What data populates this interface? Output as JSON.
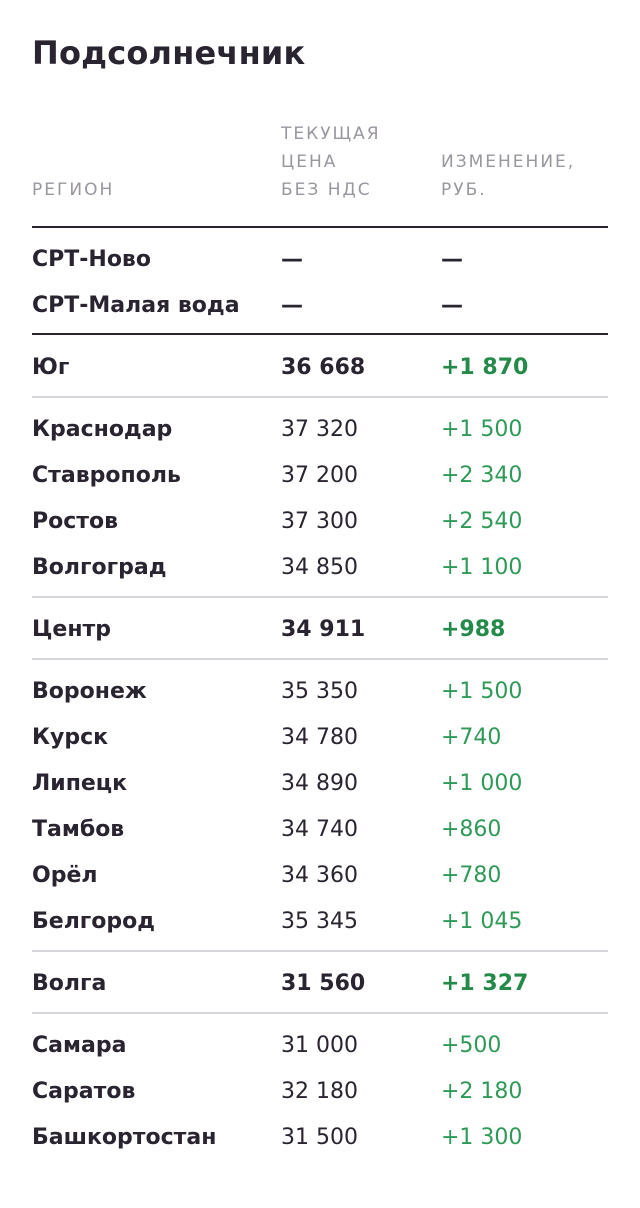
{
  "title": "Подсолнечник",
  "headers": {
    "region": "РЕГИОН",
    "price": [
      "ТЕКУЩАЯ",
      "ЦЕНА",
      "БЕЗ НДС"
    ],
    "change": [
      "ИЗМЕНЕНИЕ,",
      "РУБ."
    ]
  },
  "colors": {
    "text": "#2a2431",
    "header": "#9a969e",
    "positive": "#2f9a57",
    "divider_dark": "#2a2431",
    "divider_light": "#d6d3d9"
  },
  "rows": [
    {
      "name": "СРТ-Ново",
      "price": "—",
      "change": "—",
      "bold": false
    },
    {
      "name": "СРТ-Малая вода",
      "price": "—",
      "change": "—",
      "bold": false
    },
    {
      "name": "Юг",
      "price": "36 668",
      "change": "+1 870",
      "bold": true
    },
    {
      "name": "Краснодар",
      "price": "37 320",
      "change": "+1 500",
      "bold": false
    },
    {
      "name": "Ставрополь",
      "price": "37 200",
      "change": "+2 340",
      "bold": false
    },
    {
      "name": "Ростов",
      "price": "37 300",
      "change": "+2 540",
      "bold": false
    },
    {
      "name": "Волгоград",
      "price": "34 850",
      "change": "+1 100",
      "bold": false
    },
    {
      "name": "Центр",
      "price": "34 911",
      "change": "+988",
      "bold": true
    },
    {
      "name": "Воронеж",
      "price": "35 350",
      "change": "+1 500",
      "bold": false
    },
    {
      "name": "Курск",
      "price": "34 780",
      "change": "+740",
      "bold": false
    },
    {
      "name": "Липецк",
      "price": "34 890",
      "change": "+1 000",
      "bold": false
    },
    {
      "name": "Тамбов",
      "price": "34 740",
      "change": "+860",
      "bold": false
    },
    {
      "name": "Орёл",
      "price": "34 360",
      "change": "+780",
      "bold": false
    },
    {
      "name": "Белгород",
      "price": "35 345",
      "change": "+1 045",
      "bold": false
    },
    {
      "name": "Волга",
      "price": "31 560",
      "change": "+1 327",
      "bold": true
    },
    {
      "name": "Самара",
      "price": "31 000",
      "change": "+500",
      "bold": false
    },
    {
      "name": "Саратов",
      "price": "32 180",
      "change": "+2 180",
      "bold": false
    },
    {
      "name": "Башкортостан",
      "price": "31 500",
      "change": "+1 300",
      "bold": false
    }
  ]
}
